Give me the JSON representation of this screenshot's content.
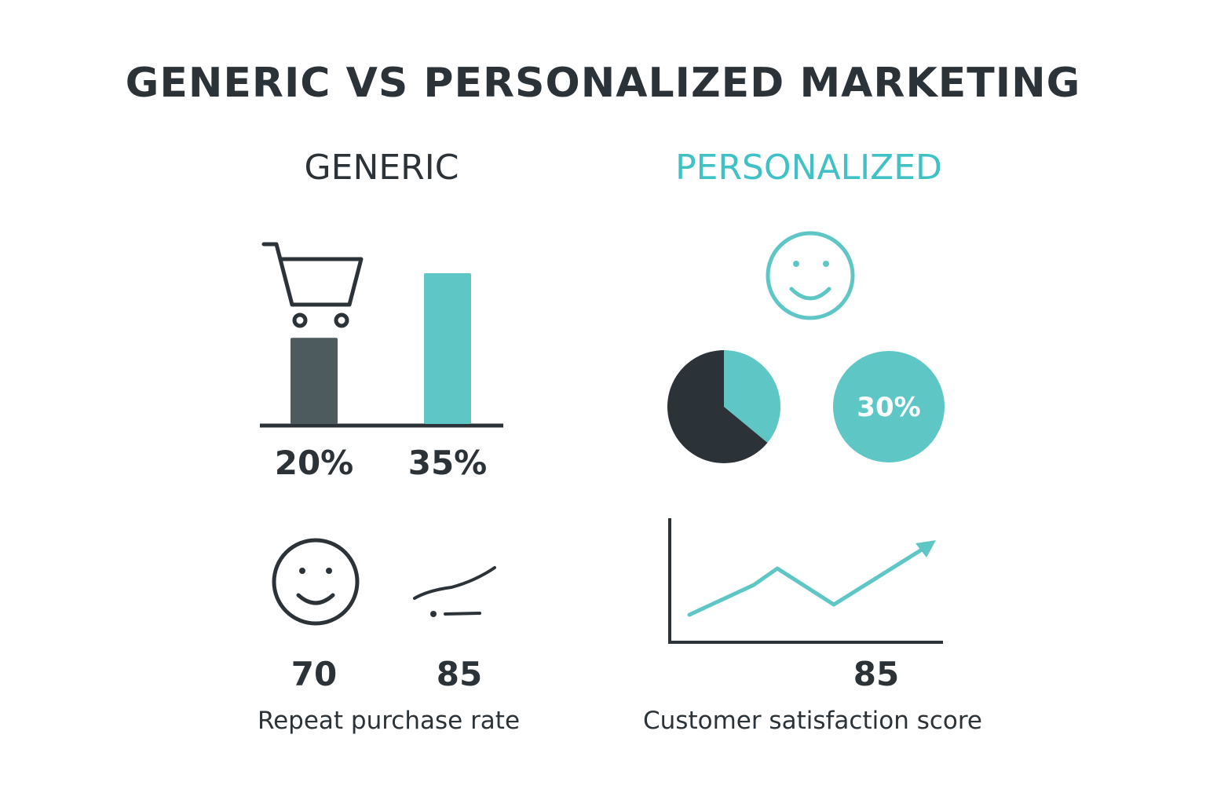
{
  "title": "GENERIC VS PERSONALIZED MARKETING",
  "columns": {
    "generic": "GENERIC",
    "personalized": "PERSONALIZED"
  },
  "colors": {
    "dark": "#2b3338",
    "bar_dark": "#4d5a5e",
    "teal": "#5ec7c6",
    "teal_text": "#3fc1c5"
  },
  "icons": {
    "cart": "shopping-cart-icon",
    "smiley_teal": "smiley-face-icon",
    "smiley_dark": "smiley-face-icon",
    "squiggle": "trend-line-icon"
  },
  "chart_data": [
    {
      "type": "bar",
      "categories": [
        "",
        ""
      ],
      "values": [
        20,
        35
      ],
      "value_labels": [
        "20%",
        "35%"
      ],
      "ylim": [
        0,
        40
      ]
    },
    {
      "type": "pie",
      "slices": [
        {
          "value": 64
        },
        {
          "value": 36
        }
      ],
      "colors": [
        "#2b3338",
        "#5ec7c6"
      ]
    },
    {
      "type": "pie",
      "label": "30%",
      "slices": [
        {
          "value": 100
        }
      ],
      "colors": [
        "#5ec7c6"
      ]
    },
    {
      "type": "line",
      "x": [
        0,
        1,
        2,
        3,
        4
      ],
      "y": [
        1.0,
        3.2,
        5.0,
        2.0,
        6.8
      ],
      "arrow": true,
      "ylim": [
        0,
        8
      ],
      "value_label": "85",
      "caption": "Customer satisfaction score"
    }
  ],
  "metrics": {
    "generic_left": "70",
    "generic_right": "85",
    "generic_caption": "Repeat purchase rate",
    "personal_value": "85",
    "personal_caption": "Customer satisfaction score"
  }
}
